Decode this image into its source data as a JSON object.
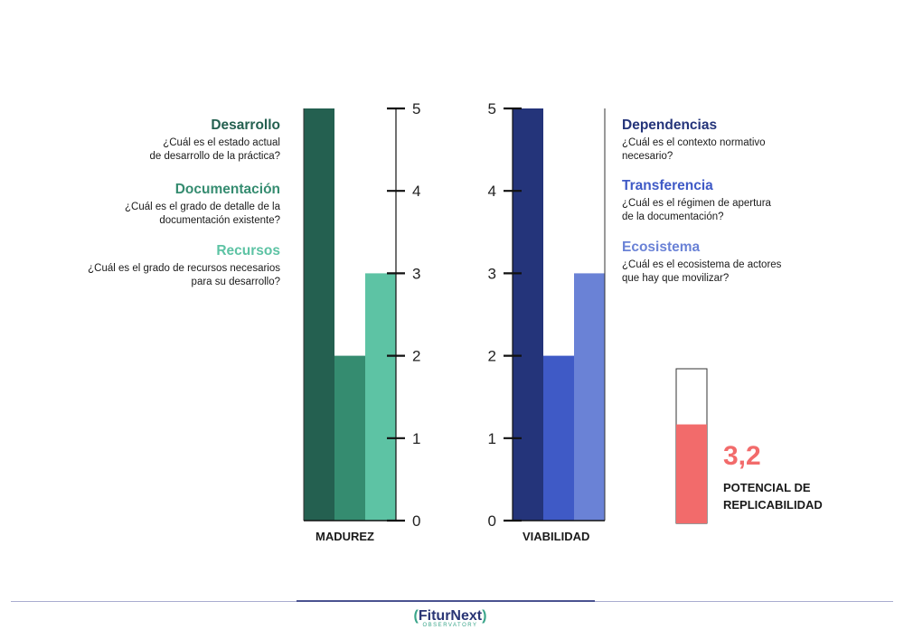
{
  "chart_data": [
    {
      "type": "bar",
      "xlabel": "MADUREZ",
      "ylim": [
        0,
        5
      ],
      "ticks": [
        0,
        1,
        2,
        3,
        4,
        5
      ],
      "categories": [
        "Desarrollo",
        "Documentación",
        "Recursos"
      ],
      "values": [
        5,
        2,
        3
      ],
      "colors": [
        "#246050",
        "#358c70",
        "#5dc3a4"
      ]
    },
    {
      "type": "bar",
      "xlabel": "VIABILIDAD",
      "ylim": [
        0,
        5
      ],
      "ticks": [
        0,
        1,
        2,
        3,
        4,
        5
      ],
      "categories": [
        "Dependencias",
        "Transferencia",
        "Ecosistema"
      ],
      "values": [
        5,
        2,
        3
      ],
      "colors": [
        "#24347a",
        "#3f5ac6",
        "#6a82d6"
      ]
    }
  ],
  "left_labels": [
    {
      "title": "Desarrollo",
      "question": "¿Cuál es el estado actual\nde desarrollo de la práctica?",
      "color": "#246050"
    },
    {
      "title": "Documentación",
      "question": "¿Cuál es el grado de detalle de la\ndocumentación existente?",
      "color": "#358c70"
    },
    {
      "title": "Recursos",
      "question": "¿Cuál es el grado de recursos necesarios\npara su desarrollo?",
      "color": "#5dc3a4"
    }
  ],
  "right_labels": [
    {
      "title": "Dependencias",
      "question": "¿Cuál es el contexto normativo\nnecesario?",
      "color": "#24347a"
    },
    {
      "title": "Transferencia",
      "question": "¿Cuál es el régimen de apertura\nde la documentación?",
      "color": "#3f5ac6"
    },
    {
      "title": "Ecosistema",
      "question": "¿Cuál es el ecosistema de actores\nque hay que movilizar?",
      "color": "#6a82d6"
    }
  ],
  "score": {
    "value": "3,2",
    "label": "POTENCIAL DE\nREPLICABILIDAD",
    "fill_fraction": 0.64,
    "color": "#f26b6b"
  },
  "logo": {
    "name_a": "FiturNext",
    "subtitle": "OBSERVATORY"
  }
}
